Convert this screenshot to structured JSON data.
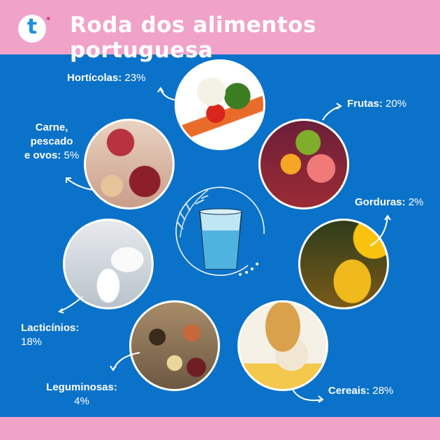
{
  "header": {
    "title": "Roda dos alimentos portuguesa",
    "logo_letter": "t",
    "logo_star": "*"
  },
  "groups": [
    {
      "name": "Hortícolas:",
      "percent": "23%",
      "value": 23
    },
    {
      "name": "Frutas:",
      "percent": "20%",
      "value": 20
    },
    {
      "name": "Gorduras:",
      "percent": "2%",
      "value": 2
    },
    {
      "name": "Cereais:",
      "percent": "28%",
      "value": 28
    },
    {
      "name": "Leguminosas:",
      "percent": "4%",
      "value": 4
    },
    {
      "name": "Lacticínios:",
      "percent": "18%",
      "value": 18
    },
    {
      "name_lines": [
        "Carne,",
        "pescado",
        "e ovos:"
      ],
      "percent": "5%",
      "value": 5
    }
  ],
  "center": {
    "icon": "water-glass-icon"
  },
  "colors": {
    "header": "#f0a2c9",
    "background": "#0b72c9",
    "text": "#ffffff"
  }
}
